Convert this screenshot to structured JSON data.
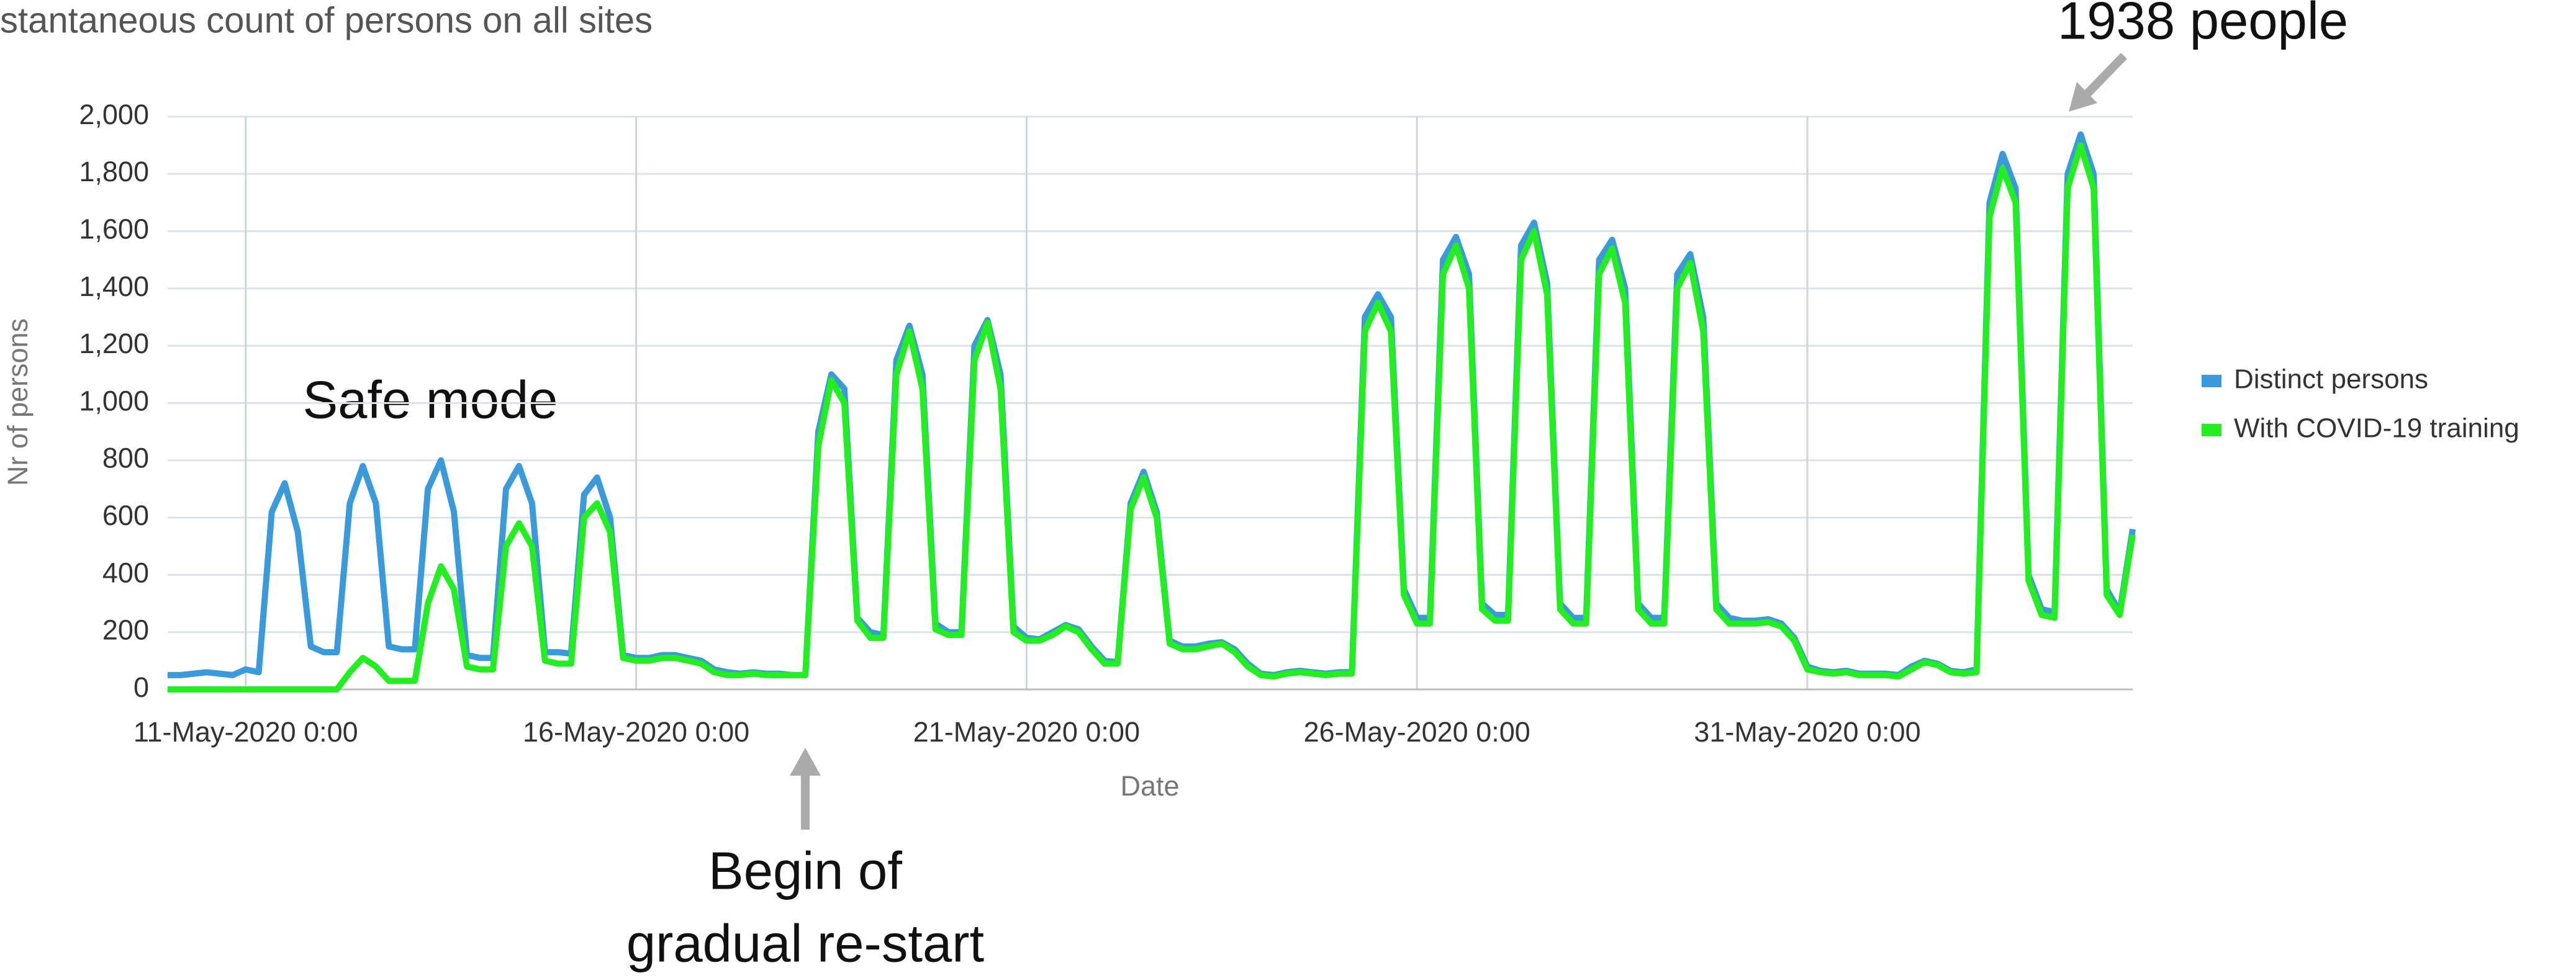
{
  "chart_data": {
    "type": "line",
    "title": "stantaneous count of persons on all sites",
    "x_label": "Date",
    "y_label": "Nr of persons",
    "annotations": [
      "Safe mode",
      "Begin of",
      "gradual re-start",
      "1938 people"
    ],
    "legend": "right",
    "grid": true,
    "xlim": [
      "2020-05-10T00:00",
      "2020-06-04T04:00"
    ],
    "xticks": [
      {
        "value": "2020-05-11T00:00",
        "label": "11-May-2020 0:00"
      },
      {
        "value": "2020-05-16T00:00",
        "label": "16-May-2020 0:00"
      },
      {
        "value": "2020-05-21T00:00",
        "label": "21-May-2020 0:00"
      },
      {
        "value": "2020-05-26T00:00",
        "label": "26-May-2020 0:00"
      },
      {
        "value": "2020-05-31T00:00",
        "label": "31-May-2020 0:00"
      }
    ],
    "ylim": [
      0,
      2000
    ],
    "yticks": [
      0,
      200,
      400,
      600,
      800,
      {
        "value": 1000,
        "label": "1,000"
      },
      {
        "value": 1200,
        "label": "1,200"
      },
      {
        "value": 1400,
        "label": "1,400"
      },
      {
        "value": 1600,
        "label": "1,600"
      },
      {
        "value": 1800,
        "label": "1,800"
      },
      {
        "value": 2000,
        "label": "2,000"
      }
    ],
    "x": [
      "2020-05-10T00:00",
      "2020-05-10T04:00",
      "2020-05-10T08:00",
      "2020-05-10T12:00",
      "2020-05-10T16:00",
      "2020-05-10T20:00",
      "2020-05-11T00:00",
      "2020-05-11T04:00",
      "2020-05-11T08:00",
      "2020-05-11T12:00",
      "2020-05-11T16:00",
      "2020-05-11T20:00",
      "2020-05-12T00:00",
      "2020-05-12T04:00",
      "2020-05-12T08:00",
      "2020-05-12T12:00",
      "2020-05-12T16:00",
      "2020-05-12T20:00",
      "2020-05-13T00:00",
      "2020-05-13T04:00",
      "2020-05-13T08:00",
      "2020-05-13T12:00",
      "2020-05-13T16:00",
      "2020-05-13T20:00",
      "2020-05-14T00:00",
      "2020-05-14T04:00",
      "2020-05-14T08:00",
      "2020-05-14T12:00",
      "2020-05-14T16:00",
      "2020-05-14T20:00",
      "2020-05-15T00:00",
      "2020-05-15T04:00",
      "2020-05-15T08:00",
      "2020-05-15T12:00",
      "2020-05-15T16:00",
      "2020-05-15T20:00",
      "2020-05-16T00:00",
      "2020-05-16T04:00",
      "2020-05-16T08:00",
      "2020-05-16T12:00",
      "2020-05-16T16:00",
      "2020-05-16T20:00",
      "2020-05-17T00:00",
      "2020-05-17T04:00",
      "2020-05-17T08:00",
      "2020-05-17T12:00",
      "2020-05-17T16:00",
      "2020-05-17T20:00",
      "2020-05-18T00:00",
      "2020-05-18T04:00",
      "2020-05-18T08:00",
      "2020-05-18T12:00",
      "2020-05-18T16:00",
      "2020-05-18T20:00",
      "2020-05-19T00:00",
      "2020-05-19T04:00",
      "2020-05-19T08:00",
      "2020-05-19T12:00",
      "2020-05-19T16:00",
      "2020-05-19T20:00",
      "2020-05-20T00:00",
      "2020-05-20T04:00",
      "2020-05-20T08:00",
      "2020-05-20T12:00",
      "2020-05-20T16:00",
      "2020-05-20T20:00",
      "2020-05-21T00:00",
      "2020-05-21T04:00",
      "2020-05-21T08:00",
      "2020-05-21T12:00",
      "2020-05-21T16:00",
      "2020-05-21T20:00",
      "2020-05-22T00:00",
      "2020-05-22T04:00",
      "2020-05-22T08:00",
      "2020-05-22T12:00",
      "2020-05-22T16:00",
      "2020-05-22T20:00",
      "2020-05-23T00:00",
      "2020-05-23T04:00",
      "2020-05-23T08:00",
      "2020-05-23T12:00",
      "2020-05-23T16:00",
      "2020-05-23T20:00",
      "2020-05-24T00:00",
      "2020-05-24T04:00",
      "2020-05-24T08:00",
      "2020-05-24T12:00",
      "2020-05-24T16:00",
      "2020-05-24T20:00",
      "2020-05-25T00:00",
      "2020-05-25T04:00",
      "2020-05-25T08:00",
      "2020-05-25T12:00",
      "2020-05-25T16:00",
      "2020-05-25T20:00",
      "2020-05-26T00:00",
      "2020-05-26T04:00",
      "2020-05-26T08:00",
      "2020-05-26T12:00",
      "2020-05-26T16:00",
      "2020-05-26T20:00",
      "2020-05-27T00:00",
      "2020-05-27T04:00",
      "2020-05-27T08:00",
      "2020-05-27T12:00",
      "2020-05-27T16:00",
      "2020-05-27T20:00",
      "2020-05-28T00:00",
      "2020-05-28T04:00",
      "2020-05-28T08:00",
      "2020-05-28T12:00",
      "2020-05-28T16:00",
      "2020-05-28T20:00",
      "2020-05-29T00:00",
      "2020-05-29T04:00",
      "2020-05-29T08:00",
      "2020-05-29T12:00",
      "2020-05-29T16:00",
      "2020-05-29T20:00",
      "2020-05-30T00:00",
      "2020-05-30T04:00",
      "2020-05-30T08:00",
      "2020-05-30T12:00",
      "2020-05-30T16:00",
      "2020-05-30T20:00",
      "2020-05-31T00:00",
      "2020-05-31T04:00",
      "2020-05-31T08:00",
      "2020-05-31T12:00",
      "2020-05-31T16:00",
      "2020-05-31T20:00",
      "2020-06-01T00:00",
      "2020-06-01T04:00",
      "2020-06-01T08:00",
      "2020-06-01T12:00",
      "2020-06-01T16:00",
      "2020-06-01T20:00",
      "2020-06-02T00:00",
      "2020-06-02T04:00",
      "2020-06-02T08:00",
      "2020-06-02T12:00",
      "2020-06-02T16:00",
      "2020-06-02T20:00",
      "2020-06-03T00:00",
      "2020-06-03T04:00",
      "2020-06-03T08:00",
      "2020-06-03T12:00",
      "2020-06-03T16:00",
      "2020-06-03T20:00",
      "2020-06-04T00:00",
      "2020-06-04T04:00"
    ],
    "series": [
      {
        "name": "Distinct persons",
        "color": "#3b9ad9",
        "values": [
          50,
          50,
          55,
          60,
          55,
          50,
          70,
          60,
          620,
          720,
          550,
          150,
          130,
          130,
          650,
          780,
          650,
          150,
          140,
          140,
          700,
          800,
          620,
          120,
          110,
          110,
          700,
          780,
          650,
          130,
          130,
          125,
          680,
          740,
          600,
          120,
          110,
          110,
          120,
          120,
          110,
          100,
          70,
          60,
          55,
          60,
          55,
          55,
          50,
          50,
          900,
          1100,
          1050,
          250,
          200,
          190,
          1150,
          1270,
          1100,
          230,
          200,
          200,
          1200,
          1290,
          1100,
          220,
          180,
          175,
          200,
          225,
          210,
          150,
          100,
          95,
          650,
          760,
          620,
          170,
          150,
          150,
          160,
          165,
          140,
          90,
          55,
          50,
          60,
          65,
          60,
          55,
          60,
          60,
          1300,
          1380,
          1300,
          350,
          250,
          250,
          1500,
          1580,
          1450,
          300,
          260,
          260,
          1550,
          1630,
          1420,
          300,
          250,
          250,
          1500,
          1570,
          1400,
          300,
          250,
          250,
          1450,
          1520,
          1300,
          300,
          250,
          240,
          240,
          245,
          230,
          180,
          80,
          65,
          60,
          65,
          55,
          55,
          55,
          50,
          80,
          100,
          90,
          65,
          60,
          70,
          1700,
          1870,
          1750,
          400,
          280,
          270,
          1800,
          1938,
          1800,
          350,
          270,
          560
        ]
      },
      {
        "name": "With COVID-19 training",
        "color": "#22ee22",
        "values": [
          0,
          0,
          0,
          0,
          0,
          0,
          0,
          0,
          0,
          0,
          0,
          0,
          0,
          0,
          60,
          110,
          80,
          30,
          30,
          30,
          300,
          430,
          350,
          80,
          70,
          70,
          500,
          580,
          500,
          100,
          90,
          90,
          600,
          650,
          550,
          110,
          100,
          100,
          110,
          110,
          100,
          90,
          60,
          50,
          50,
          55,
          50,
          50,
          50,
          50,
          850,
          1080,
          1000,
          240,
          180,
          180,
          1100,
          1250,
          1050,
          210,
          190,
          190,
          1150,
          1280,
          1050,
          200,
          170,
          170,
          190,
          220,
          200,
          140,
          90,
          90,
          630,
          740,
          600,
          160,
          140,
          140,
          150,
          160,
          130,
          80,
          50,
          45,
          55,
          60,
          55,
          50,
          55,
          55,
          1250,
          1350,
          1250,
          330,
          230,
          230,
          1450,
          1550,
          1400,
          280,
          240,
          240,
          1500,
          1600,
          1380,
          280,
          230,
          230,
          1450,
          1540,
          1350,
          280,
          230,
          230,
          1400,
          1490,
          1250,
          280,
          230,
          230,
          230,
          235,
          220,
          170,
          70,
          60,
          55,
          60,
          50,
          50,
          50,
          45,
          70,
          95,
          85,
          60,
          55,
          60,
          1650,
          1820,
          1700,
          380,
          260,
          250,
          1750,
          1900,
          1750,
          330,
          260,
          540
        ]
      }
    ]
  }
}
